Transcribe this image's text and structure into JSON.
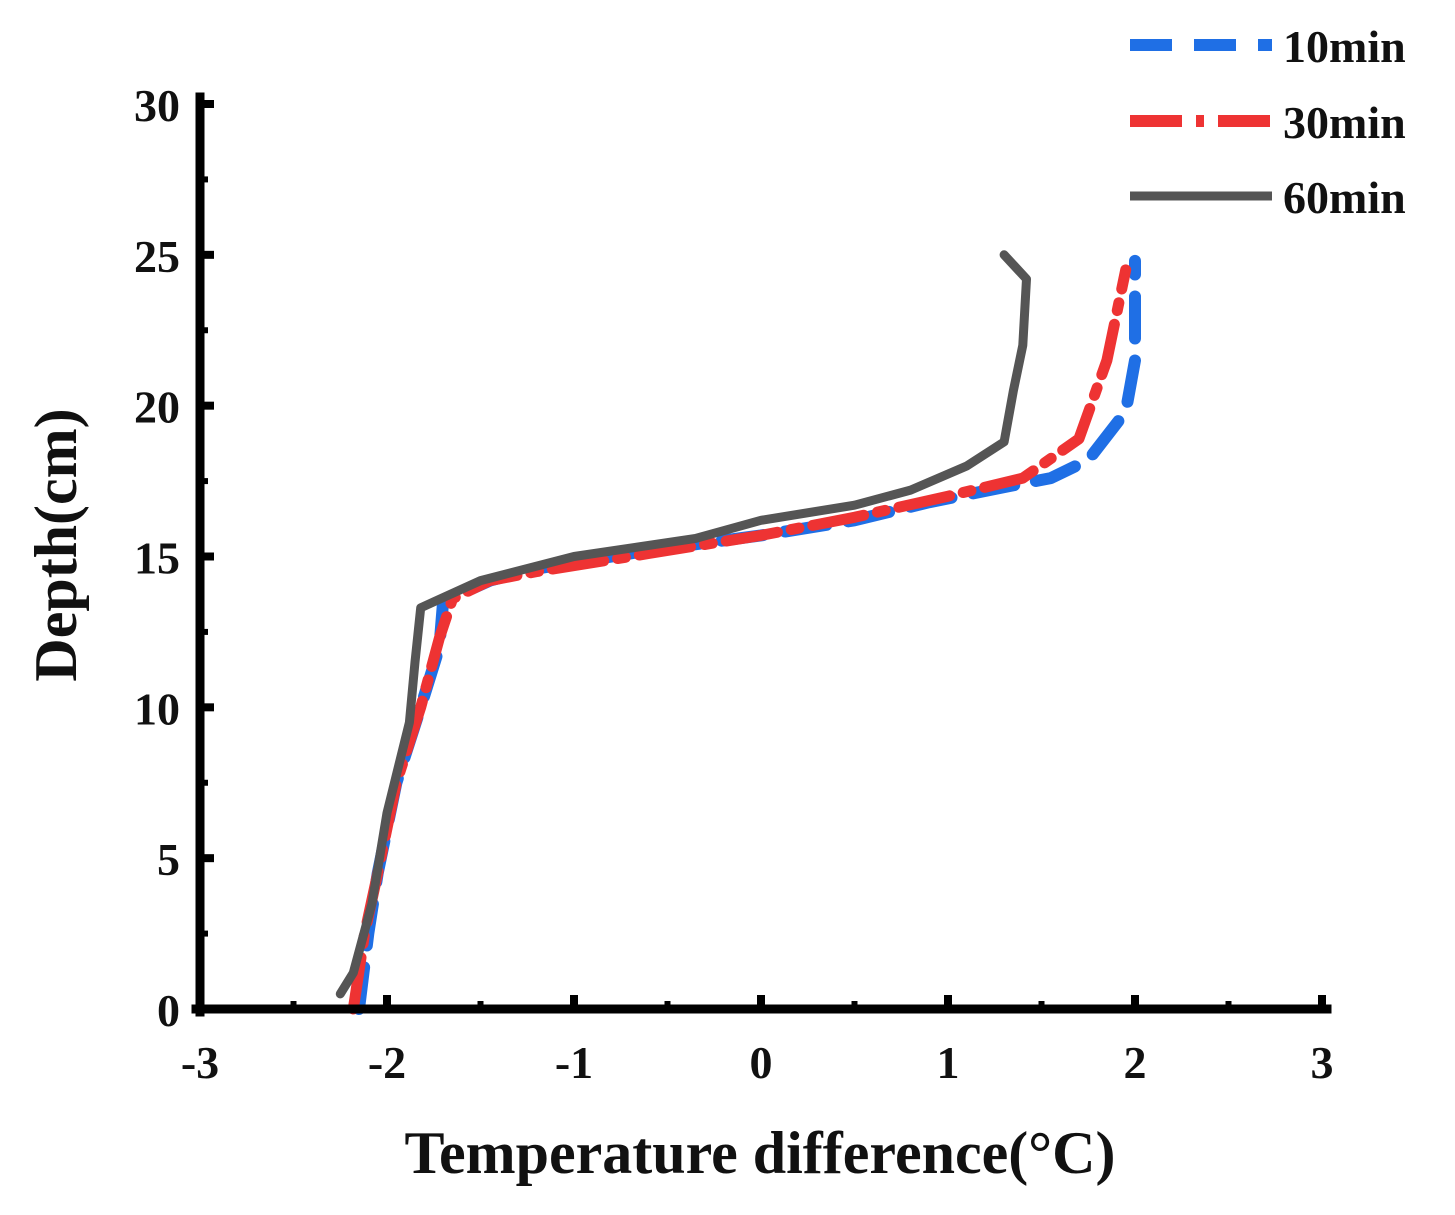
{
  "chart_data": {
    "type": "line",
    "title": "",
    "xlabel": "Temperature difference(°C)",
    "ylabel": "Depth(cm)",
    "xlim": [
      -3,
      3
    ],
    "ylim": [
      0,
      30
    ],
    "x_ticks": [
      -3,
      -2,
      -1,
      0,
      1,
      2,
      3
    ],
    "x_tick_labels": [
      "-3",
      "-2",
      "-1",
      "0",
      "1",
      "2",
      "3"
    ],
    "y_ticks": [
      0,
      5,
      10,
      15,
      20,
      25,
      30
    ],
    "y_tick_labels": [
      "0",
      "5",
      "10",
      "15",
      "20",
      "25",
      "30"
    ],
    "grid": false,
    "legend_position": "top-right",
    "series": [
      {
        "name": "10min",
        "color": "#1f6fe5",
        "style": "dashed",
        "points": [
          [
            -2.15,
            0
          ],
          [
            -2.1,
            2.5
          ],
          [
            -2.05,
            4.5
          ],
          [
            -1.95,
            7.5
          ],
          [
            -1.82,
            10
          ],
          [
            -1.72,
            12
          ],
          [
            -1.7,
            13.5
          ],
          [
            -1.45,
            14.2
          ],
          [
            -1.2,
            14.6
          ],
          [
            -0.6,
            15.2
          ],
          [
            0.0,
            15.7
          ],
          [
            0.5,
            16.2
          ],
          [
            0.9,
            16.8
          ],
          [
            1.3,
            17.3
          ],
          [
            1.55,
            17.6
          ],
          [
            1.75,
            18.2
          ],
          [
            1.95,
            19.8
          ],
          [
            2.0,
            21.5
          ],
          [
            2.0,
            24.8
          ]
        ]
      },
      {
        "name": "30min",
        "color": "#ee3333",
        "style": "dashdot",
        "points": [
          [
            -2.18,
            0
          ],
          [
            -2.12,
            2.5
          ],
          [
            -2.05,
            4.5
          ],
          [
            -1.95,
            7.5
          ],
          [
            -1.82,
            10
          ],
          [
            -1.72,
            12.3
          ],
          [
            -1.65,
            13.6
          ],
          [
            -1.45,
            14.2
          ],
          [
            -1.2,
            14.5
          ],
          [
            -0.6,
            15.1
          ],
          [
            0.0,
            15.7
          ],
          [
            0.5,
            16.3
          ],
          [
            1.0,
            17.0
          ],
          [
            1.4,
            17.6
          ],
          [
            1.7,
            18.9
          ],
          [
            1.85,
            21.5
          ],
          [
            1.95,
            24.5
          ]
        ]
      },
      {
        "name": "60min",
        "color": "#555555",
        "style": "solid",
        "points": [
          [
            -2.25,
            0.5
          ],
          [
            -2.18,
            1.2
          ],
          [
            -2.08,
            3.5
          ],
          [
            -2.0,
            6.5
          ],
          [
            -1.88,
            9.5
          ],
          [
            -1.85,
            11.5
          ],
          [
            -1.82,
            13.3
          ],
          [
            -1.75,
            13.5
          ],
          [
            -1.5,
            14.2
          ],
          [
            -1.0,
            15.0
          ],
          [
            -0.35,
            15.6
          ],
          [
            0.0,
            16.2
          ],
          [
            0.5,
            16.7
          ],
          [
            0.8,
            17.2
          ],
          [
            1.1,
            18.0
          ],
          [
            1.3,
            18.8
          ],
          [
            1.35,
            20.5
          ],
          [
            1.4,
            22.0
          ],
          [
            1.42,
            24.2
          ],
          [
            1.3,
            25.0
          ]
        ]
      }
    ]
  }
}
